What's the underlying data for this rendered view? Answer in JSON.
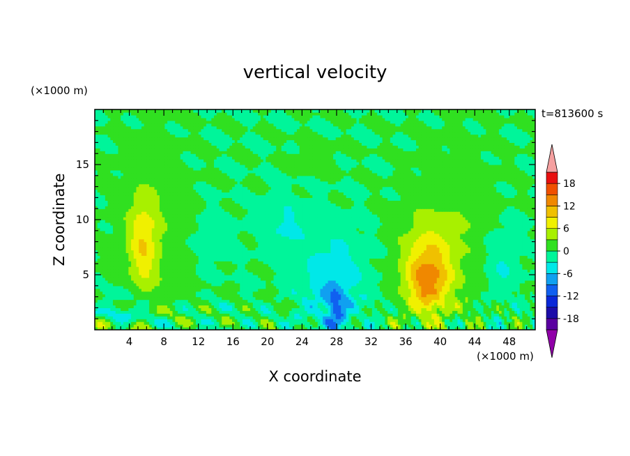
{
  "chart_data": {
    "type": "heatmap",
    "title": "vertical velocity",
    "xlabel": "X coordinate",
    "ylabel": "Z coordinate",
    "x_unit": "(×1000 m)",
    "y_unit": "(×1000 m)",
    "time_label": "t=813600 s",
    "xlim": [
      0,
      51
    ],
    "ylim": [
      0,
      20
    ],
    "x_ticks": [
      4,
      8,
      12,
      16,
      20,
      24,
      28,
      32,
      36,
      40,
      44,
      48
    ],
    "y_ticks": [
      5,
      10,
      15
    ],
    "colorbar": {
      "levels": [
        -21,
        -18,
        -15,
        -12,
        -9,
        -6,
        -3,
        0,
        3,
        6,
        9,
        12,
        15,
        18,
        21
      ],
      "tick_labels": [
        "18",
        "12",
        "6",
        "0",
        "-6",
        "-12",
        "-18"
      ],
      "colors": [
        "#9000a8",
        "#5a00a0",
        "#1c0ca8",
        "#0a28d8",
        "#1060f0",
        "#10a0f0",
        "#00e8e8",
        "#00f59a",
        "#30e020",
        "#a8f000",
        "#f0f000",
        "#f0c000",
        "#f08800",
        "#f05000",
        "#e81010",
        "#f5a0a0"
      ],
      "extend": "both"
    },
    "features": [
      {
        "label": "updraft",
        "x": 5.5,
        "z": 8.0,
        "peak": 9
      },
      {
        "label": "updraft",
        "x": 38.5,
        "z": 4.0,
        "peak": 15
      },
      {
        "label": "downdraft",
        "x": 28.0,
        "z": 2.0,
        "peak": -9
      },
      {
        "label": "downdraft",
        "x": 23.0,
        "z": 9.5,
        "peak": -3
      }
    ]
  }
}
